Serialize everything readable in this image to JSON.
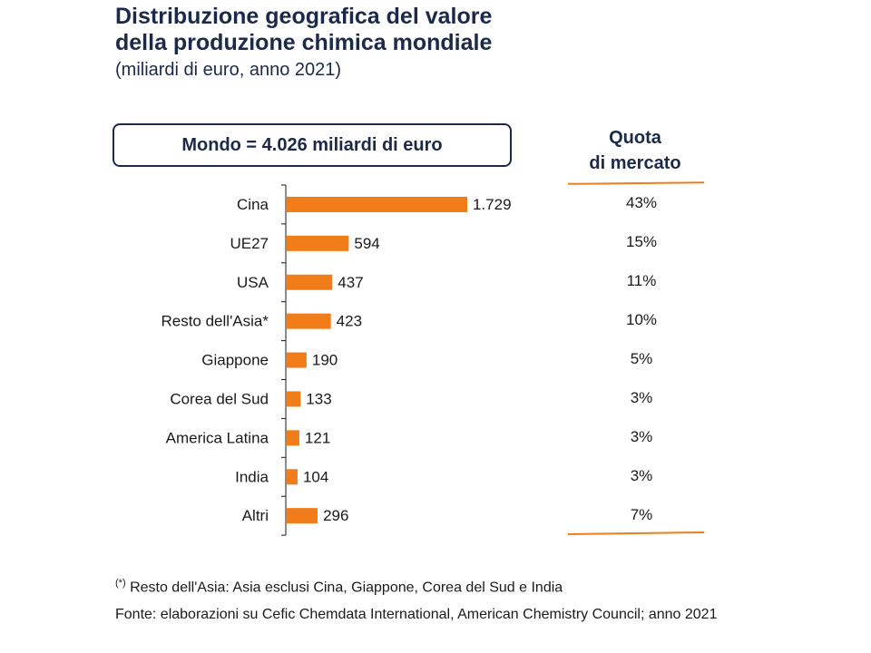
{
  "header": {
    "title_line1": "Distribuzione geografica del valore",
    "title_line2": "della produzione chimica mondiale",
    "subtitle": "(miliardi di euro, anno 2021)"
  },
  "world_total": "Mondo = 4.026 miliardi di euro",
  "market_share": {
    "header_line1": "Quota",
    "header_line2": "di mercato",
    "values": [
      "43%",
      "15%",
      "11%",
      "10%",
      "5%",
      "3%",
      "3%",
      "3%",
      "7%"
    ]
  },
  "chart_data": {
    "type": "bar",
    "orientation": "horizontal",
    "categories": [
      "Cina",
      "UE27",
      "USA",
      "Resto dell'Asia*",
      "Giappone",
      "Corea del Sud",
      "America Latina",
      "India",
      "Altri"
    ],
    "values": [
      1729,
      594,
      437,
      423,
      190,
      133,
      121,
      104,
      296
    ],
    "value_labels": [
      "1.729",
      "594",
      "437",
      "423",
      "190",
      "133",
      "121",
      "104",
      "296"
    ],
    "bar_color": "#f07d1a",
    "xlim": [
      0,
      1729
    ]
  },
  "footnote": {
    "marker": "(*)",
    "text": "Resto dell'Asia: Asia esclusi Cina, Giappone, Corea del Sud e India"
  },
  "source": "Fonte: elaborazioni su Cefic Chemdata International, American Chemistry Council; anno 2021"
}
